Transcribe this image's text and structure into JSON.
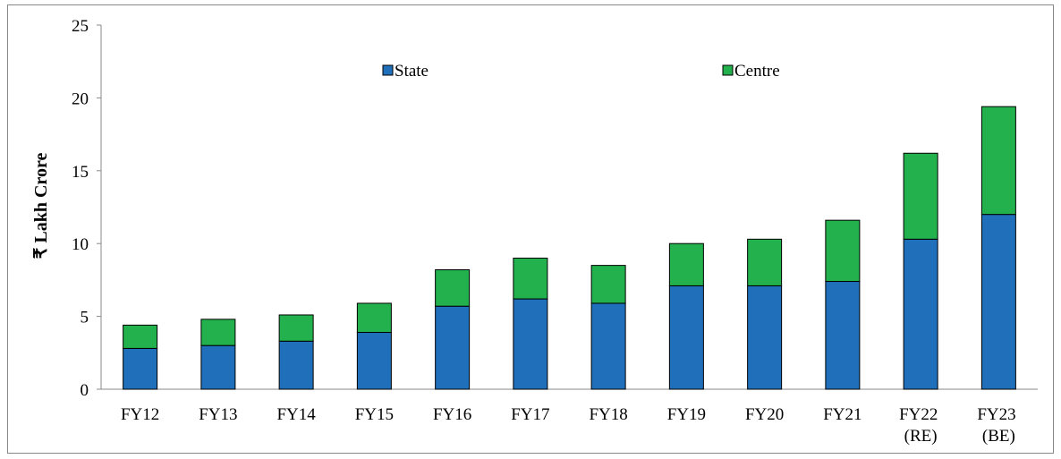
{
  "chart_data": {
    "type": "stacked_bar",
    "y_label": "₹ Lakh Crore",
    "categories": [
      "FY12",
      "FY13",
      "FY14",
      "FY15",
      "FY16",
      "FY17",
      "FY18",
      "FY19",
      "FY20",
      "FY21",
      "FY22 (RE)",
      "FY23 (BE)"
    ],
    "series": [
      {
        "name": "State",
        "color": "#1f6fba",
        "values": [
          2.8,
          3.0,
          3.3,
          3.9,
          5.7,
          6.2,
          5.9,
          7.1,
          7.1,
          7.4,
          10.3,
          12.0
        ]
      },
      {
        "name": "Centre",
        "color": "#22b14c",
        "values": [
          1.6,
          1.8,
          1.8,
          2.0,
          2.5,
          2.8,
          2.6,
          2.9,
          3.2,
          4.2,
          5.9,
          7.4
        ]
      }
    ],
    "ylim": [
      0,
      25
    ],
    "yticks": [
      0,
      5,
      10,
      15,
      20,
      25
    ]
  }
}
